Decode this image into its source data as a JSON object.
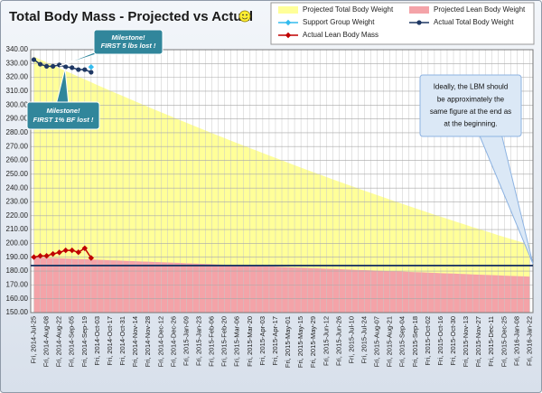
{
  "chart_data": {
    "type": "line",
    "title": "Total Body Mass - Projected vs Actual",
    "categories": [
      "Fri, 2014-Jul-25",
      null,
      "Fri, 2014-Aug-08",
      null,
      "Fri, 2014-Aug-22",
      null,
      "Fri, 2014-Sep-05",
      null,
      "Fri, 2014-Sep-19",
      null,
      "Fri, 2014-Oct-03",
      null,
      "Fri, 2014-Oct-17",
      null,
      "Fri, 2014-Oct-31",
      null,
      "Fri, 2014-Nov-14",
      null,
      "Fri, 2014-Nov-28",
      null,
      "Fri, 2014-Dec-12",
      null,
      "Fri, 2014-Dec-26",
      null,
      "Fri, 2015-Jan-09",
      null,
      "Fri, 2015-Jan-23",
      null,
      "Fri, 2015-Feb-06",
      null,
      "Fri, 2015-Feb-20",
      null,
      "Fri, 2015-Mar-06",
      null,
      "Fri, 2015-Mar-20",
      null,
      "Fri, 2015-Apr-03",
      null,
      "Fri, 2015-Apr-17",
      null,
      "Fri, 2015-May-01",
      null,
      "Fri, 2015-May-15",
      null,
      "Fri, 2015-May-29",
      null,
      "Fri, 2015-Jun-12",
      null,
      "Fri, 2015-Jun-26",
      null,
      "Fri, 2015-Jul-10",
      null,
      "Fri, 2015-Jul-24",
      null,
      "Fri, 2015-Aug-07",
      null,
      "Fri, 2015-Aug-21",
      null,
      "Fri, 2015-Sep-04",
      null,
      "Fri, 2015-Sep-18",
      null,
      "Fri, 2015-Oct-02",
      null,
      "Fri, 2015-Oct-16",
      null,
      "Fri, 2015-Oct-30",
      null,
      "Fri, 2015-Nov-13",
      null,
      "Fri, 2015-Nov-27",
      null,
      "Fri, 2015-Dec-11",
      null,
      "Fri, 2015-Dec-25",
      null,
      "Fri, 2016-Jan-08",
      null,
      "Fri, 2016-Jan-22"
    ],
    "series": [
      {
        "name": "Projected Total Body Weight",
        "kind": "area",
        "color": "#ffff99",
        "values": [
          335.0,
          332.9,
          330.8,
          328.7,
          326.7,
          324.6,
          322.6,
          320.5,
          318.5,
          316.5,
          314.4,
          312.4,
          310.4,
          308.4,
          306.5,
          304.5,
          302.5,
          300.6,
          298.6,
          296.7,
          294.8,
          292.9,
          291.0,
          289.1,
          287.2,
          285.3,
          283.4,
          281.6,
          279.7,
          277.9,
          276.1,
          274.2,
          272.4,
          270.6,
          268.8,
          267.1,
          265.3,
          263.5,
          261.8,
          260.0,
          258.3,
          256.5,
          254.8,
          253.1,
          251.4,
          249.7,
          248.0,
          246.3,
          244.7,
          243.0,
          241.4,
          239.7,
          238.1,
          236.5,
          234.9,
          233.3,
          231.7,
          230.1,
          228.5,
          227.0,
          225.4,
          223.9,
          222.3,
          220.8,
          219.3,
          217.8,
          216.3,
          214.8,
          213.3,
          211.8,
          210.4,
          208.9,
          207.5,
          206.0,
          204.6,
          203.2,
          201.8,
          200.4,
          199.0
        ]
      },
      {
        "name": "Projected Lean Body Weight",
        "kind": "area",
        "color": "#f4a3a8",
        "values": [
          190.0,
          189.8,
          189.6,
          189.5,
          189.3,
          189.1,
          188.9,
          188.7,
          188.6,
          188.4,
          188.2,
          188.0,
          187.8,
          187.7,
          187.5,
          187.3,
          187.1,
          186.9,
          186.8,
          186.6,
          186.4,
          186.2,
          186.1,
          185.9,
          185.7,
          185.5,
          185.3,
          185.2,
          185.0,
          184.8,
          184.6,
          184.4,
          184.3,
          184.1,
          183.9,
          183.7,
          183.5,
          183.4,
          183.2,
          183.0,
          182.8,
          182.6,
          182.5,
          182.3,
          182.1,
          181.9,
          181.7,
          181.6,
          181.4,
          181.2,
          181.0,
          180.8,
          180.7,
          180.5,
          180.3,
          180.1,
          179.9,
          179.8,
          179.6,
          179.4,
          179.2,
          179.1,
          178.9,
          178.7,
          178.5,
          178.3,
          178.2,
          178.0,
          177.8,
          177.6,
          177.4,
          177.3,
          177.1,
          176.9,
          176.7,
          176.5,
          176.4,
          176.2,
          176.0
        ]
      },
      {
        "name": "Support Group Weight",
        "kind": "line",
        "marker": "diamond",
        "color": "#33bbee",
        "values": [
          null,
          null,
          null,
          null,
          null,
          null,
          null,
          null,
          null,
          327.5,
          null,
          null,
          null,
          null,
          null,
          null,
          null,
          null,
          null,
          null,
          null,
          null,
          null,
          null,
          null,
          null,
          null,
          null,
          null,
          null,
          null,
          null,
          null,
          null,
          null,
          null,
          null,
          null,
          null,
          null,
          null,
          null,
          null,
          null,
          null,
          null,
          null,
          null,
          null,
          null,
          null,
          null,
          null,
          null,
          null,
          null,
          null,
          null,
          null,
          null,
          null,
          null,
          null,
          null,
          null,
          null,
          null,
          null,
          null,
          null,
          null,
          null,
          null,
          null,
          null,
          null,
          null,
          null,
          null
        ]
      },
      {
        "name": "Actual Total Body Weight",
        "kind": "line",
        "marker": "circle",
        "color": "#1f3864",
        "values": [
          332.8,
          329.5,
          328.0,
          328.0,
          329.0,
          327.6,
          327.0,
          325.6,
          325.6,
          323.7,
          null,
          null,
          null,
          null,
          null,
          null,
          null,
          null,
          null,
          null,
          null,
          null,
          null,
          null,
          null,
          null,
          null,
          null,
          null,
          null,
          null,
          null,
          null,
          null,
          null,
          null,
          null,
          null,
          null,
          null,
          null,
          null,
          null,
          null,
          null,
          null,
          null,
          null,
          null,
          null,
          null,
          null,
          null,
          null,
          null,
          null,
          null,
          null,
          null,
          null,
          null,
          null,
          null,
          null,
          null,
          null,
          null,
          null,
          null,
          null,
          null,
          null,
          null,
          null,
          null,
          null,
          null,
          null,
          null
        ]
      },
      {
        "name": "Actual Lean Body Mass",
        "kind": "line",
        "marker": "diamond",
        "color": "#c00000",
        "values": [
          190.1,
          191.0,
          191.0,
          192.4,
          193.5,
          195.0,
          195.0,
          193.6,
          196.5,
          189.5,
          null,
          null,
          null,
          null,
          null,
          null,
          null,
          null,
          null,
          null,
          null,
          null,
          null,
          null,
          null,
          null,
          null,
          null,
          null,
          null,
          null,
          null,
          null,
          null,
          null,
          null,
          null,
          null,
          null,
          null,
          null,
          null,
          null,
          null,
          null,
          null,
          null,
          null,
          null,
          null,
          null,
          null,
          null,
          null,
          null,
          null,
          null,
          null,
          null,
          null,
          null,
          null,
          null,
          null,
          null,
          null,
          null,
          null,
          null,
          null,
          null,
          null,
          null,
          null,
          null,
          null,
          null,
          null,
          null
        ]
      }
    ],
    "reference_line": {
      "value": 184,
      "color": "#1f3864"
    },
    "ylim": [
      150,
      340
    ],
    "yticks": [
      {
        "value": 150,
        "label": "150.00"
      },
      {
        "value": 160,
        "label": "160.00"
      },
      {
        "value": 170,
        "label": "170.00"
      },
      {
        "value": 180,
        "label": "180.00"
      },
      {
        "value": 190,
        "label": "190.00"
      },
      {
        "value": 200,
        "label": "200.00"
      },
      {
        "value": 210,
        "label": "210.00"
      },
      {
        "value": 220,
        "label": "220.00"
      },
      {
        "value": 230,
        "label": "230.00"
      },
      {
        "value": 240,
        "label": "240.00"
      },
      {
        "value": 250,
        "label": "250.00"
      },
      {
        "value": 260,
        "label": "260.00"
      },
      {
        "value": 270,
        "label": "270.00"
      },
      {
        "value": 280,
        "label": "280.00"
      },
      {
        "value": 290,
        "label": "290.00"
      },
      {
        "value": 300,
        "label": "300.00"
      },
      {
        "value": 310,
        "label": "310.00"
      },
      {
        "value": 320,
        "label": "320.00"
      },
      {
        "value": 330,
        "label": "330.00"
      },
      {
        "value": 340,
        "label": "340.00"
      }
    ],
    "grid": true,
    "legend": "top-right",
    "annotations": [
      {
        "lines": [
          "Milestone!",
          "FIRST 5 lbs lost !"
        ]
      },
      {
        "lines": [
          "Milestone!",
          "FIRST 1% BF lost !"
        ]
      },
      {
        "lines": [
          "Ideally, the LBM should",
          "be approximately the",
          "same figure at the end as",
          "at the beginning."
        ]
      }
    ]
  }
}
